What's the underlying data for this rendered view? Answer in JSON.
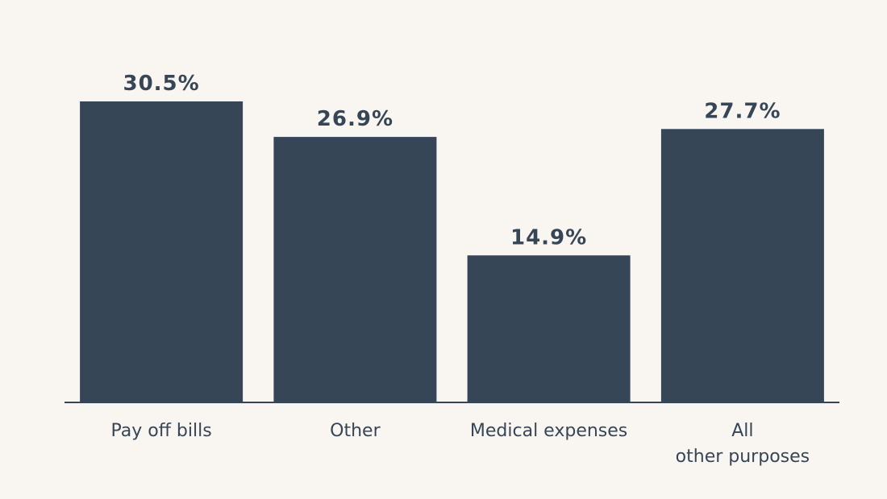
{
  "colors": {
    "background": "#f9f6f2",
    "bar": "#364656",
    "text": "#364656"
  },
  "chart_data": {
    "type": "bar",
    "title": "",
    "xlabel": "",
    "ylabel": "",
    "categories": [
      [
        "Pay off bills"
      ],
      [
        "Other"
      ],
      [
        "Medical expenses"
      ],
      [
        "All",
        "other purposes"
      ]
    ],
    "values": [
      30.5,
      26.9,
      14.9,
      27.7
    ],
    "value_labels": [
      "30.5%",
      "26.9%",
      "14.9%",
      "27.7%"
    ],
    "unit": "%",
    "ylim": [
      0,
      30.5
    ],
    "grid": false,
    "legend": "none"
  }
}
